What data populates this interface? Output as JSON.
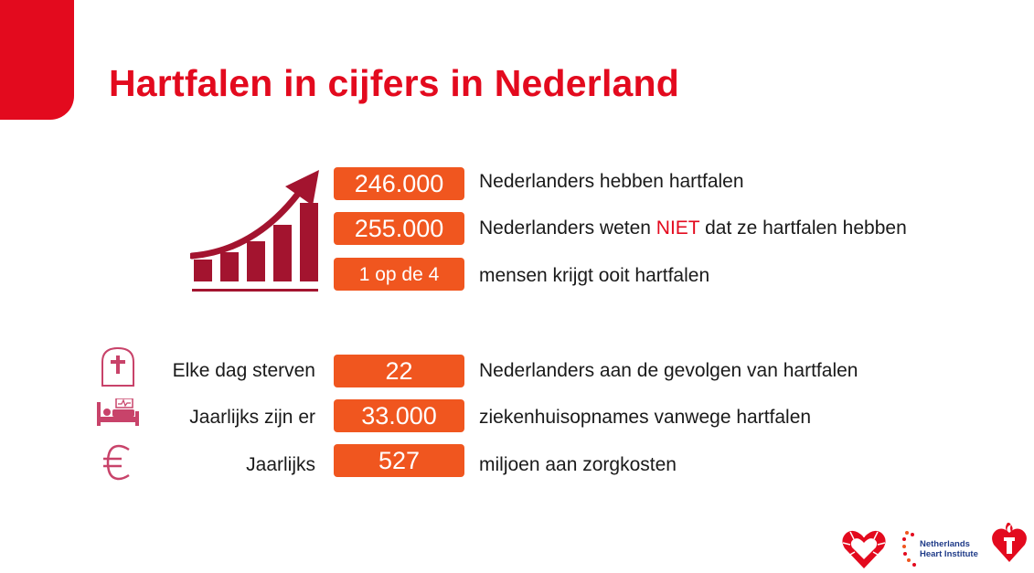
{
  "title": "Hartfalen in cijfers in Nederland",
  "colors": {
    "brand_red": "#e30a1e",
    "pill_orange": "#f0561f",
    "icon_maroon": "#a3142f",
    "icon_pink": "#c8436a"
  },
  "stats_top": [
    {
      "value": "246.000",
      "text": "Nederlanders hebben hartfalen"
    },
    {
      "value": "255.000",
      "text_before": "Nederlanders weten ",
      "highlight": "NIET",
      "text_after": " dat ze hartfalen hebben"
    },
    {
      "value": "1 op de 4",
      "text": "mensen krijgt ooit hartfalen"
    }
  ],
  "stats_bottom": [
    {
      "icon": "tombstone-cross-icon",
      "label": "Elke dag sterven",
      "value": "22",
      "text": "Nederlanders aan de gevolgen van hartfalen"
    },
    {
      "icon": "hospital-bed-icon",
      "label": "Jaarlijks zijn er",
      "value": "33.000",
      "text": "ziekenhuisopnames vanwege hartfalen"
    },
    {
      "icon": "euro-icon",
      "label": "Jaarlijks",
      "value": "527",
      "text": "miljoen aan zorgkosten"
    }
  ],
  "logos": {
    "heart_logo": "heart-logo-icon",
    "nhi": {
      "line1": "Netherlands",
      "line2": "Heart Institute"
    },
    "heart_torch_logo": "heart-torch-logo-icon"
  }
}
